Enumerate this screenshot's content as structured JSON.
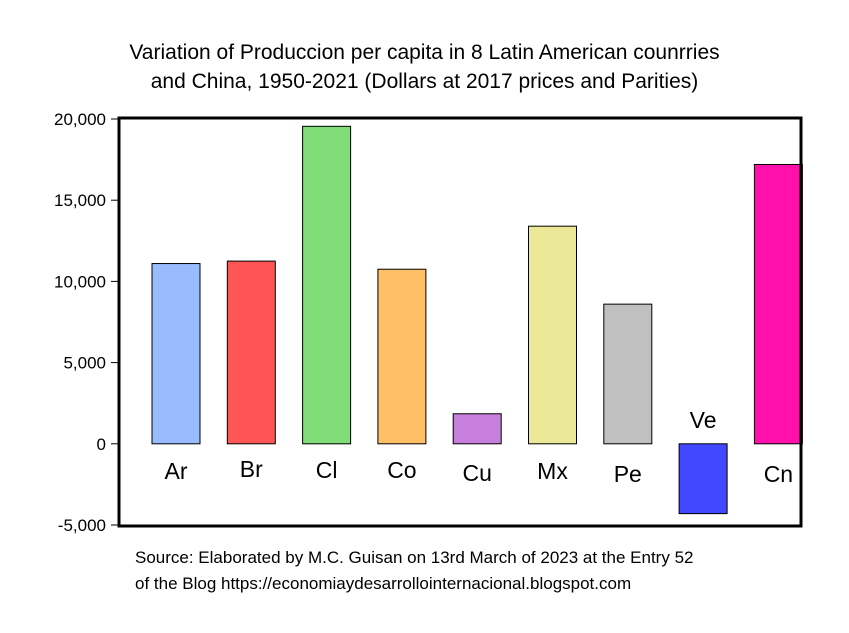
{
  "chart_data": {
    "type": "bar",
    "title_lines": [
      "Variation of Produccion per capita in 8 Latin American counrries",
      "and China, 1950-2021 (Dollars at 2017 prices and Parities)"
    ],
    "categories": [
      "Ar",
      "Br",
      "Cl",
      "Co",
      "Cu",
      "Mx",
      "Pe",
      "Ve",
      "Cn"
    ],
    "values": [
      11100,
      11250,
      19550,
      10750,
      1850,
      13400,
      8600,
      -4300,
      17200
    ],
    "colors": [
      "#99BBFF",
      "#FF5555",
      "#80DD77",
      "#FFBF66",
      "#C77FDD",
      "#EBE898",
      "#C0C0C0",
      "#4148FF",
      "#FF10AA"
    ],
    "ylim": [
      -5000,
      20000
    ],
    "yticks": [
      20000,
      15000,
      10000,
      5000,
      0,
      -5000
    ],
    "ytick_labels": [
      "20,000",
      "15,000",
      "10,000",
      "5,000",
      "0",
      "-5,000"
    ],
    "grid": false,
    "legend": "none"
  },
  "source_lines": [
    "Source: Elaborated by M.C. Guisan on 13rd March of 2023 at the Entry 52",
    "of the Blog https://economiaydesarrollointernacional.blogspot.com"
  ]
}
